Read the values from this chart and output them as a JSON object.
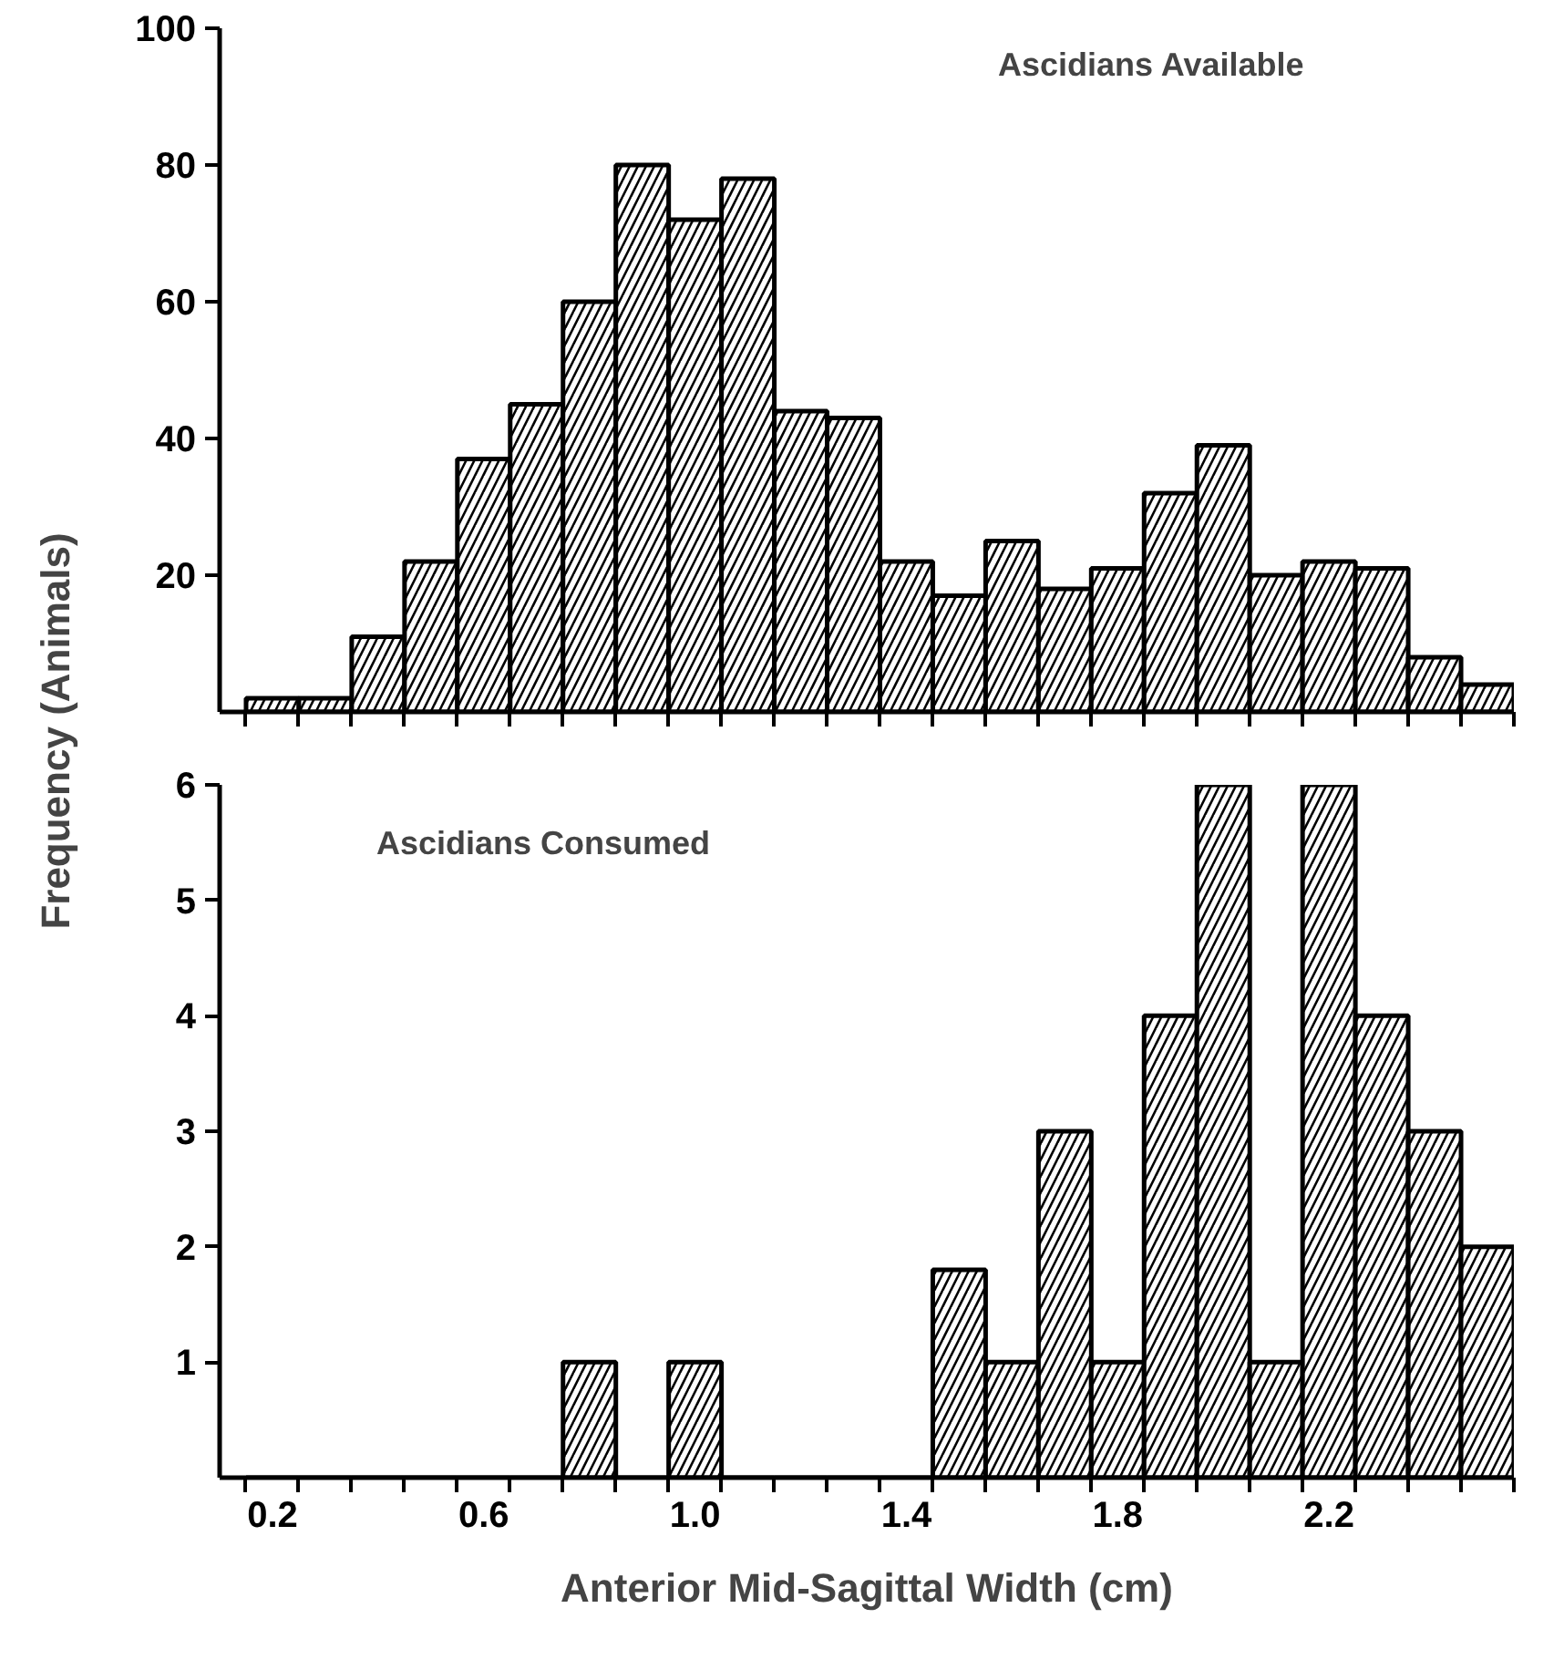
{
  "chart_data": [
    {
      "type": "histogram",
      "annotations": [
        "Ascidians Available"
      ],
      "ylabel": "Frequency (Animals)",
      "bins": [
        0.15,
        0.25,
        0.35,
        0.45,
        0.55,
        0.65,
        0.75,
        0.85,
        0.95,
        1.05,
        1.15,
        1.25,
        1.35,
        1.45,
        1.55,
        1.65,
        1.75,
        1.85,
        1.95,
        2.05,
        2.15,
        2.25,
        2.35,
        2.45,
        2.55
      ],
      "values": [
        2,
        2,
        11,
        22,
        37,
        45,
        60,
        80,
        72,
        78,
        44,
        43,
        22,
        17,
        25,
        18,
        21,
        32,
        39,
        20,
        22,
        21,
        8,
        4
      ],
      "color": "#000000",
      "xlim": [
        0.1,
        2.55
      ],
      "ylim": [
        0,
        100
      ],
      "yticks": [
        20,
        40,
        60,
        80,
        100
      ],
      "xticks": [
        {
          "value": 0.15,
          "label": null
        },
        {
          "value": 0.25,
          "label": null
        },
        {
          "value": 0.35,
          "label": null
        },
        {
          "value": 0.45,
          "label": null
        },
        {
          "value": 0.55,
          "label": null
        },
        {
          "value": 0.65,
          "label": null
        },
        {
          "value": 0.75,
          "label": null
        },
        {
          "value": 0.85,
          "label": null
        },
        {
          "value": 0.95,
          "label": null
        },
        {
          "value": 1.05,
          "label": null
        },
        {
          "value": 1.15,
          "label": null
        },
        {
          "value": 1.25,
          "label": null
        },
        {
          "value": 1.35,
          "label": null
        },
        {
          "value": 1.45,
          "label": null
        },
        {
          "value": 1.55,
          "label": null
        },
        {
          "value": 1.65,
          "label": null
        },
        {
          "value": 1.75,
          "label": null
        },
        {
          "value": 1.85,
          "label": null
        },
        {
          "value": 1.95,
          "label": null
        },
        {
          "value": 2.05,
          "label": null
        },
        {
          "value": 2.15,
          "label": null
        },
        {
          "value": 2.25,
          "label": null
        },
        {
          "value": 2.35,
          "label": null
        },
        {
          "value": 2.45,
          "label": null
        },
        {
          "value": 2.55,
          "label": null
        }
      ],
      "tick_labels": "y",
      "grid": false
    },
    {
      "type": "histogram",
      "annotations": [
        "Ascidians Consumed"
      ],
      "xlabel": "Anterior Mid-Sagittal Width (cm)",
      "bins": [
        0.15,
        0.25,
        0.35,
        0.45,
        0.55,
        0.65,
        0.75,
        0.85,
        0.95,
        1.05,
        1.15,
        1.25,
        1.35,
        1.45,
        1.55,
        1.65,
        1.75,
        1.85,
        1.95,
        2.05,
        2.15,
        2.25,
        2.35,
        2.45,
        2.55
      ],
      "values": [
        0,
        0,
        0,
        0,
        0,
        0,
        1,
        0,
        1,
        0,
        0,
        0,
        0,
        1.8,
        1,
        3,
        1,
        4,
        6,
        1,
        6,
        4,
        3,
        2
      ],
      "color": "#000000",
      "xlim": [
        0.1,
        2.55
      ],
      "ylim": [
        0,
        6
      ],
      "yticks": [
        1,
        2,
        3,
        4,
        5,
        6
      ],
      "xticks": [
        {
          "value": 0.15,
          "label": null
        },
        {
          "value": 0.2,
          "label": "0.2"
        },
        {
          "value": 0.25,
          "label": null
        },
        {
          "value": 0.35,
          "label": null
        },
        {
          "value": 0.45,
          "label": null
        },
        {
          "value": 0.55,
          "label": null
        },
        {
          "value": 0.6,
          "label": "0.6"
        },
        {
          "value": 0.65,
          "label": null
        },
        {
          "value": 0.75,
          "label": null
        },
        {
          "value": 0.85,
          "label": null
        },
        {
          "value": 0.95,
          "label": null
        },
        {
          "value": 1.0,
          "label": "1.0"
        },
        {
          "value": 1.05,
          "label": null
        },
        {
          "value": 1.15,
          "label": null
        },
        {
          "value": 1.25,
          "label": null
        },
        {
          "value": 1.35,
          "label": null
        },
        {
          "value": 1.4,
          "label": "1.4"
        },
        {
          "value": 1.45,
          "label": null
        },
        {
          "value": 1.55,
          "label": null
        },
        {
          "value": 1.65,
          "label": null
        },
        {
          "value": 1.75,
          "label": null
        },
        {
          "value": 1.8,
          "label": "1.8"
        },
        {
          "value": 1.85,
          "label": null
        },
        {
          "value": 1.95,
          "label": null
        },
        {
          "value": 2.05,
          "label": null
        },
        {
          "value": 2.15,
          "label": null
        },
        {
          "value": 2.2,
          "label": "2.2"
        },
        {
          "value": 2.25,
          "label": null
        },
        {
          "value": 2.35,
          "label": null
        },
        {
          "value": 2.45,
          "label": null
        },
        {
          "value": 2.55,
          "label": null
        }
      ],
      "grid": false
    }
  ]
}
